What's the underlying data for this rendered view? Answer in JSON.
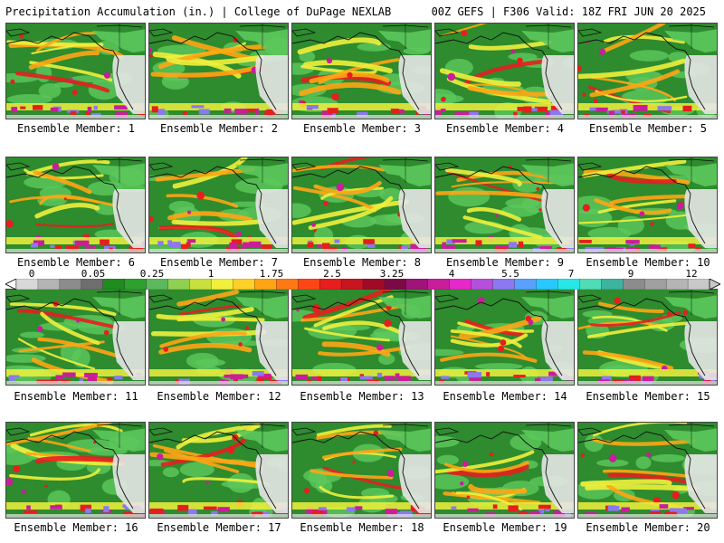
{
  "header": {
    "left": "Precipitation Accumulation (in.) | College of DuPage NEXLAB",
    "right": "00Z GEFS | F306 Valid: 18Z FRI JUN 20 2025"
  },
  "panel_label_prefix": "Ensemble Member:",
  "members": [
    1,
    2,
    3,
    4,
    5,
    6,
    7,
    8,
    9,
    10,
    11,
    12,
    13,
    14,
    15,
    16,
    17,
    18,
    19,
    20
  ],
  "colorbar": {
    "ticks": [
      "0",
      "0.05",
      "0.25",
      "1",
      "1.75",
      "2.5",
      "3.25",
      "4",
      "5.5",
      "7",
      "9",
      "12"
    ],
    "colors": [
      "#d8d8d8",
      "#b4b4b4",
      "#8c8c8c",
      "#6e6e6e",
      "#1e8c1e",
      "#2ea02e",
      "#5cb85c",
      "#90d050",
      "#c8e03c",
      "#f0f03c",
      "#ffd028",
      "#ffa514",
      "#ff7814",
      "#ff4614",
      "#e61e1e",
      "#c8141e",
      "#a00a28",
      "#7a0a46",
      "#a0147a",
      "#c81e9b",
      "#e628c8",
      "#b450dc",
      "#8c78f0",
      "#5aa0ff",
      "#28c8ff",
      "#28e6e6",
      "#50dcb4",
      "#3cb4a0",
      "#8c8c8c",
      "#a0a0a0",
      "#b4b4b4",
      "#c8c8c8"
    ]
  },
  "map_colors": {
    "ocean_base": "#2e8b2e",
    "light_green": "#5cc85c",
    "yellow": "#f0f03c",
    "orange": "#ffa514",
    "red": "#e61e1e",
    "magenta": "#c81e9b",
    "purple": "#8c78f0",
    "land_dry": "#e6e6e6",
    "coast": "#111111"
  }
}
